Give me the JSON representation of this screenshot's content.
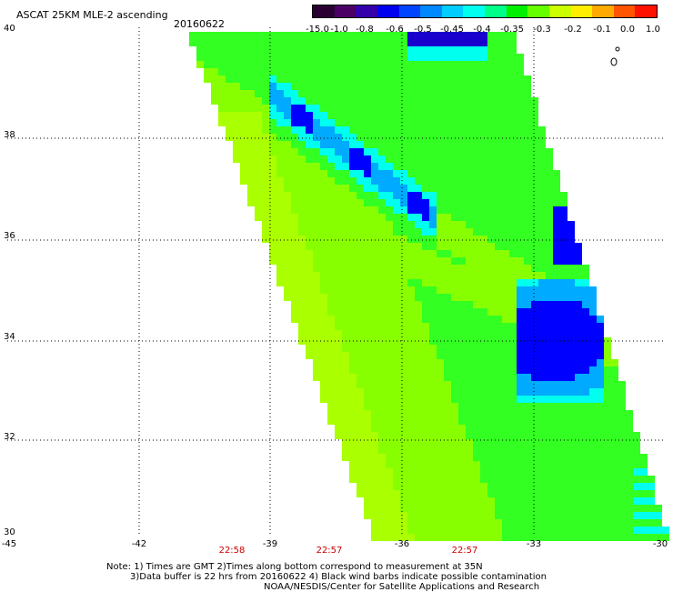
{
  "header": {
    "title": "ASCAT 25KM MLE-2 ascending",
    "date": "20160622"
  },
  "colorbar": {
    "ticks": [
      "-15.0",
      "-1.0",
      "-0.8",
      "-0.6",
      "-0.5",
      "-0.45",
      "-0.4",
      "-0.35",
      "-0.3",
      "-0.2",
      "-0.1",
      "0.0",
      "1.0"
    ],
    "colors": [
      "#2a0033",
      "#4b0066",
      "#3300aa",
      "#0000ee",
      "#0044ff",
      "#0088ff",
      "#00ccff",
      "#00ffee",
      "#00ff88",
      "#00ee00",
      "#66ff00",
      "#ccff00",
      "#ffee00",
      "#ffaa00",
      "#ff5500",
      "#ff1100"
    ]
  },
  "axes": {
    "y_labels": [
      "40",
      "38",
      "36",
      "34",
      "32",
      "30"
    ],
    "x_labels": [
      "-45",
      "-42",
      "-39",
      "-36",
      "-33",
      "-30"
    ],
    "time_labels": [
      "22:58",
      "22:57",
      "22:57"
    ]
  },
  "notes": {
    "line1": "Note: 1) Times are GMT 2)Times along bottom correspond to measurement at 35N",
    "line2": "3)Data buffer is 22 hrs from 20160622 4) Black wind barbs indicate possible contamination",
    "line3": "NOAA/NESDIS/Center for Satellite Applications and Research"
  },
  "palette": {
    "lime": "#88ff00",
    "yellowgreen": "#aaff00",
    "green": "#33ff22",
    "cyan": "#00ffee",
    "lightblue": "#00aaff",
    "blue": "#0000ff",
    "darkblue": "#1a00cc",
    "purple": "#6600aa"
  }
}
